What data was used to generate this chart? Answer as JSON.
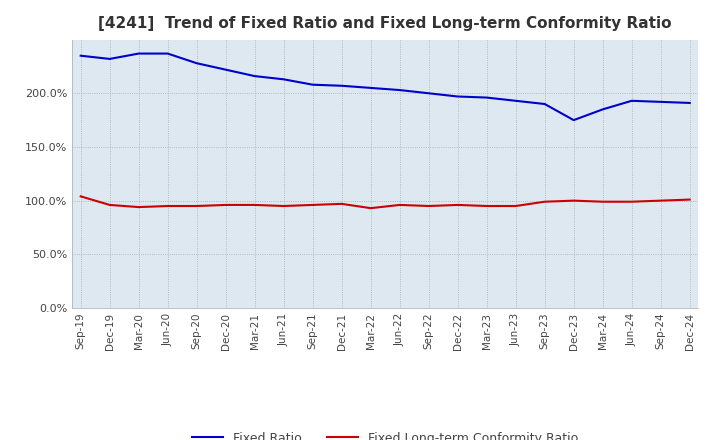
{
  "title": "[4241]  Trend of Fixed Ratio and Fixed Long-term Conformity Ratio",
  "title_fontsize": 11,
  "x_labels": [
    "Sep-19",
    "Dec-19",
    "Mar-20",
    "Jun-20",
    "Sep-20",
    "Dec-20",
    "Mar-21",
    "Jun-21",
    "Sep-21",
    "Dec-21",
    "Mar-22",
    "Jun-22",
    "Sep-22",
    "Dec-22",
    "Mar-23",
    "Jun-23",
    "Sep-23",
    "Dec-23",
    "Mar-24",
    "Jun-24",
    "Sep-24",
    "Dec-24"
  ],
  "fixed_ratio": [
    235,
    232,
    237,
    237,
    228,
    222,
    216,
    213,
    208,
    207,
    205,
    203,
    200,
    197,
    196,
    193,
    190,
    175,
    185,
    193,
    192,
    191
  ],
  "fixed_lt_ratio": [
    104,
    96,
    94,
    95,
    95,
    96,
    96,
    95,
    96,
    97,
    93,
    96,
    95,
    96,
    95,
    95,
    99,
    100,
    99,
    99,
    100,
    101
  ],
  "fixed_ratio_color": "#0000cc",
  "fixed_lt_ratio_color": "#cc0000",
  "ylim": [
    0,
    250
  ],
  "yticks": [
    0,
    50,
    100,
    150,
    200
  ],
  "ytick_labels": [
    "0.0%",
    "50.0%",
    "100.0%",
    "150.0%",
    "200.0%"
  ],
  "grid_color": "#aaaaaa",
  "plot_bg_color": "#dde8f0",
  "bg_color": "#ffffff",
  "legend_fixed_ratio": "Fixed Ratio",
  "legend_fixed_lt_ratio": "Fixed Long-term Conformity Ratio",
  "line_width": 1.5
}
